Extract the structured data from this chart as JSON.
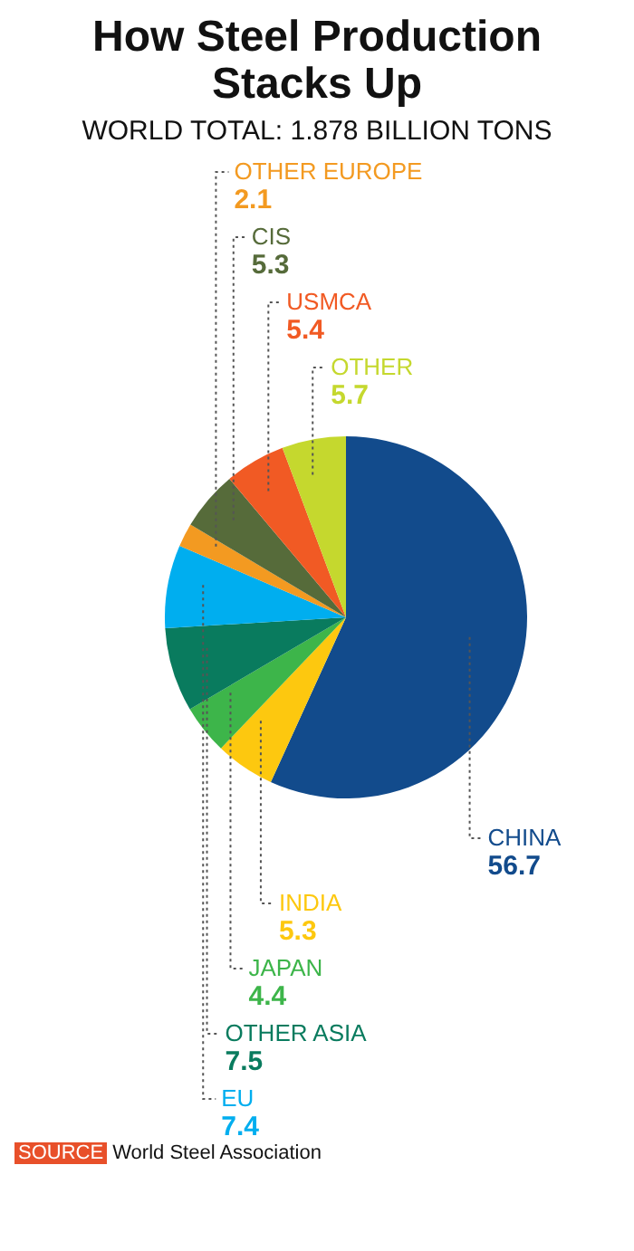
{
  "chart_data": {
    "type": "pie",
    "title": "How Steel Production Stacks Up",
    "subtitle": "WORLD TOTAL: 1.878 BILLION TONS",
    "categories": [
      "CHINA",
      "INDIA",
      "JAPAN",
      "OTHER ASIA",
      "EU",
      "OTHER EUROPE",
      "CIS",
      "USMCA",
      "OTHER"
    ],
    "values": [
      56.7,
      5.3,
      4.4,
      7.5,
      7.4,
      2.1,
      5.3,
      5.4,
      5.7
    ],
    "colors": [
      "#124b8c",
      "#fdc80f",
      "#3db54a",
      "#097b5e",
      "#00aeef",
      "#f39a21",
      "#566b3a",
      "#f15a24",
      "#c5d82e"
    ],
    "data_labels": true,
    "legend": false,
    "annotations": [
      "SOURCE World Steel Association"
    ]
  }
}
